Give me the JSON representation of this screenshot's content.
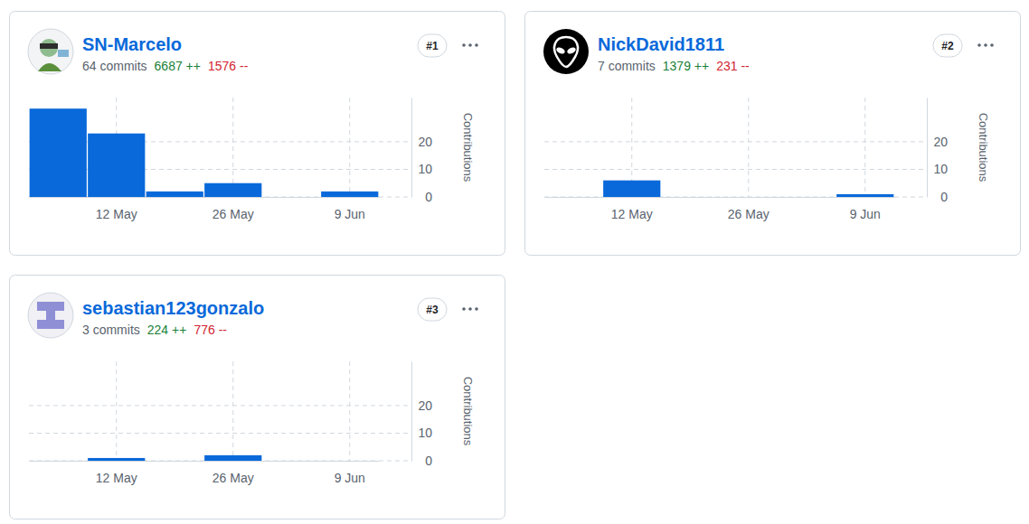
{
  "chart_data": [
    {
      "type": "bar",
      "title": "SN-Marcelo",
      "commits": "64 commits",
      "additions": "6687 ++",
      "deletions": "1576 --",
      "rank": "#1",
      "y_label": "Contributions",
      "categories": [
        null,
        "12 May",
        null,
        "26 May",
        null,
        "9 Jun"
      ],
      "values": [
        32,
        23,
        2,
        5,
        0,
        2
      ],
      "color": "#0969da",
      "ylim": [
        0,
        36
      ],
      "yticks": [
        0,
        10,
        20
      ],
      "grid": true
    },
    {
      "type": "bar",
      "title": "NickDavid1811",
      "commits": "7 commits",
      "additions": "1379 ++",
      "deletions": "231 --",
      "rank": "#2",
      "y_label": "Contributions",
      "categories": [
        null,
        "12 May",
        null,
        "26 May",
        null,
        "9 Jun"
      ],
      "values": [
        0,
        6,
        0,
        0,
        0,
        1
      ],
      "color": "#0969da",
      "ylim": [
        0,
        36
      ],
      "yticks": [
        0,
        10,
        20
      ],
      "grid": true
    },
    {
      "type": "bar",
      "title": "sebastian123gonzalo",
      "commits": "3 commits",
      "additions": "224 ++",
      "deletions": "776 --",
      "rank": "#3",
      "y_label": "Contributions",
      "categories": [
        null,
        "12 May",
        null,
        "26 May",
        null,
        "9 Jun"
      ],
      "values": [
        0,
        1,
        0,
        2,
        0,
        0
      ],
      "color": "#0969da",
      "ylim": [
        0,
        36
      ],
      "yticks": [
        0,
        10,
        20
      ],
      "grid": true
    }
  ]
}
